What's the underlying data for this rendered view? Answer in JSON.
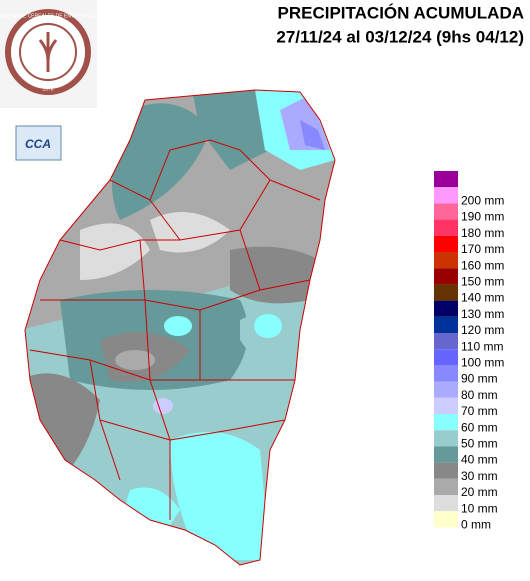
{
  "header": {
    "title": "PRECIPITACIÓN ACUMULADA",
    "subtitle": "27/11/24 al 03/12/24 (9hs 04/12)",
    "logo_text": "BOLSA DE CEREALES DE ENTRE RIOS",
    "logo_year": "1978",
    "badge": "CCA"
  },
  "legend": {
    "entries": [
      {
        "label": null,
        "color": "#990099"
      },
      {
        "label": "200 mm",
        "color": "#ff99ff"
      },
      {
        "label": "190 mm",
        "color": "#ff6699"
      },
      {
        "label": "180 mm",
        "color": "#ff3366"
      },
      {
        "label": "170 mm",
        "color": "#ff0000"
      },
      {
        "label": "160 mm",
        "color": "#cc3300"
      },
      {
        "label": "150 mm",
        "color": "#990000"
      },
      {
        "label": "140 mm",
        "color": "#663300"
      },
      {
        "label": "130 mm",
        "color": "#000066"
      },
      {
        "label": "120 mm",
        "color": "#003399"
      },
      {
        "label": "110 mm",
        "color": "#6666cc"
      },
      {
        "label": "100 mm",
        "color": "#6666ff"
      },
      {
        "label": "90 mm",
        "color": "#8888ff"
      },
      {
        "label": "80 mm",
        "color": "#aaaaff"
      },
      {
        "label": "70 mm",
        "color": "#ccccff"
      },
      {
        "label": "60 mm",
        "color": "#88ffff"
      },
      {
        "label": "50 mm",
        "color": "#99cccc"
      },
      {
        "label": "40 mm",
        "color": "#669999"
      },
      {
        "label": "30 mm",
        "color": "#888888"
      },
      {
        "label": "20 mm",
        "color": "#aaaaaa"
      },
      {
        "label": "10 mm",
        "color": "#dddddd"
      },
      {
        "label": "0 mm",
        "color": "#ffffcc"
      }
    ]
  }
}
